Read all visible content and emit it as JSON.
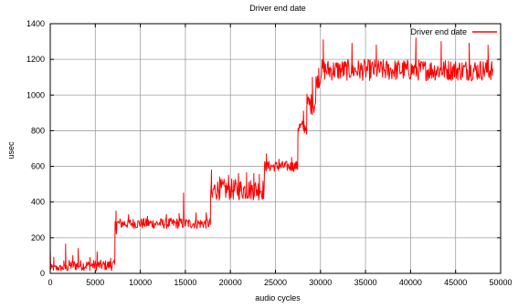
{
  "chart_data": {
    "type": "line",
    "title": "Driver end date",
    "xlabel": "audio cycles",
    "ylabel": "usec",
    "xlim": [
      0,
      50000
    ],
    "ylim": [
      0,
      1400
    ],
    "x_ticks": [
      0,
      5000,
      10000,
      15000,
      20000,
      25000,
      30000,
      35000,
      40000,
      45000,
      50000
    ],
    "y_ticks": [
      0,
      200,
      400,
      600,
      800,
      1000,
      1200,
      1400
    ],
    "grid": true,
    "legend_position": "top-right",
    "series": [
      {
        "name": "Driver end date",
        "color": "#ff0000",
        "segments": [
          {
            "x_start": 0,
            "x_end": 2000,
            "baseline": 30,
            "spread": 20,
            "spikes": [
              [
                0,
                130
              ],
              [
                400,
                90
              ],
              [
                1500,
                70
              ]
            ]
          },
          {
            "x_start": 2000,
            "x_end": 7200,
            "baseline": 45,
            "spread": 30,
            "spikes": [
              [
                1700,
                165
              ],
              [
                2500,
                100
              ],
              [
                3100,
                140
              ],
              [
                4400,
                90
              ],
              [
                5200,
                120
              ],
              [
                6700,
                85
              ]
            ]
          },
          {
            "x_start": 7200,
            "x_end": 7400,
            "baseline": 260,
            "spread": 40,
            "spikes": [
              [
                7300,
                350
              ]
            ]
          },
          {
            "x_start": 7400,
            "x_end": 17800,
            "baseline": 280,
            "spread": 30,
            "spikes": [
              [
                8700,
                330
              ],
              [
                10800,
                320
              ],
              [
                12900,
                330
              ],
              [
                14300,
                335
              ],
              [
                14800,
                450
              ],
              [
                16200,
                340
              ],
              [
                17300,
                340
              ]
            ]
          },
          {
            "x_start": 17800,
            "x_end": 18100,
            "baseline": 430,
            "spread": 70,
            "spikes": [
              [
                17900,
                580
              ]
            ]
          },
          {
            "x_start": 18100,
            "x_end": 23800,
            "baseline": 470,
            "spread": 60,
            "spikes": [
              [
                18800,
                540
              ],
              [
                19800,
                550
              ],
              [
                20900,
                560
              ],
              [
                21800,
                565
              ],
              [
                22600,
                560
              ],
              [
                23200,
                555
              ]
            ]
          },
          {
            "x_start": 23800,
            "x_end": 27500,
            "baseline": 600,
            "spread": 30,
            "spikes": [
              [
                24000,
                670
              ],
              [
                25400,
                640
              ],
              [
                26800,
                650
              ]
            ]
          },
          {
            "x_start": 27500,
            "x_end": 28500,
            "baseline": 820,
            "spread": 40,
            "spikes": [
              [
                28100,
                910
              ]
            ]
          },
          {
            "x_start": 28500,
            "x_end": 29500,
            "baseline": 950,
            "spread": 60,
            "spikes": [
              [
                29100,
                1100
              ]
            ]
          },
          {
            "x_start": 29500,
            "x_end": 30000,
            "baseline": 1080,
            "spread": 40,
            "spikes": [
              [
                29800,
                1150
              ]
            ]
          },
          {
            "x_start": 30000,
            "x_end": 49200,
            "baseline": 1140,
            "spread": 60,
            "spikes": [
              [
                30300,
                1310
              ],
              [
                33500,
                1290
              ],
              [
                36200,
                1280
              ],
              [
                40600,
                1320
              ],
              [
                43400,
                1300
              ],
              [
                46500,
                1290
              ],
              [
                48600,
                1280
              ]
            ]
          }
        ]
      }
    ]
  }
}
